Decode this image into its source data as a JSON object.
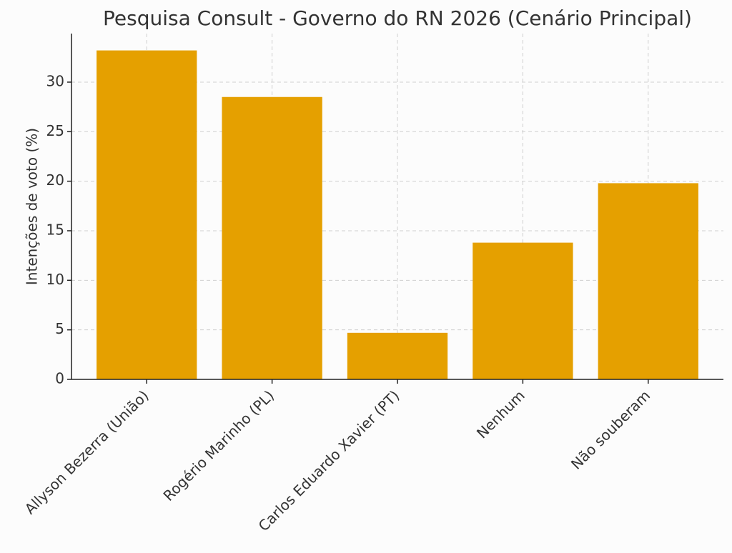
{
  "chart_data": {
    "type": "bar",
    "title": "Pesquisa Consult - Governo do RN 2026 (Cenário Principal)",
    "y_label": "Intenções de voto (%)",
    "categories": [
      "Allyson Bezerra (União)",
      "Rogério Marinho (PL)",
      "Carlos Eduardo Xavier (PT)",
      "Nenhum",
      "Não souberam"
    ],
    "values": [
      33.2,
      28.5,
      4.7,
      13.8,
      19.8
    ],
    "color": "#e5a000",
    "ylim": [
      0,
      34.9
    ],
    "yticks": [
      0,
      5,
      10,
      15,
      20,
      25,
      30
    ],
    "grid": true
  }
}
